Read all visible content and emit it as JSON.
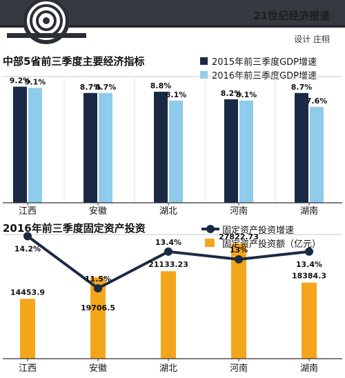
{
  "header": {
    "newspaper": "21世纪经济报道",
    "designer": "设计 庄栩"
  },
  "colors": {
    "navy": "#1b2a44",
    "light_blue": "#8fcbea",
    "orange": "#f3a51c",
    "topbar": "#353a40"
  },
  "chart_data": [
    {
      "type": "bar",
      "title": "中部5省前三季度主要经济指标",
      "categories": [
        "江西",
        "安徽",
        "湖北",
        "河南",
        "湖南"
      ],
      "series": [
        {
          "name": "2015年前三季度GDP增速",
          "values": [
            9.2,
            8.7,
            8.8,
            8.2,
            8.7
          ],
          "labels": [
            "9.2%",
            "8.7%",
            "8.8%",
            "8.2%",
            "8.7%"
          ]
        },
        {
          "name": "2016年前三季度GDP增速",
          "values": [
            9.1,
            8.7,
            8.1,
            8.1,
            7.6
          ],
          "labels": [
            "9.1%",
            "8.7%",
            "8.1%",
            "8.1%",
            "7.6%"
          ]
        }
      ],
      "ylim": [
        0,
        10
      ],
      "legend": "top-right"
    },
    {
      "type": "bar",
      "title": "2016年前三季度固定资产投资",
      "categories": [
        "江西",
        "安徽",
        "湖北",
        "河南",
        "湖南"
      ],
      "series": [
        {
          "name": "固定资产投资增速",
          "type": "line",
          "values": [
            14.2,
            11.5,
            13.4,
            13,
            13.4
          ],
          "labels": [
            "14.2%",
            "11.5%",
            "13.4%",
            "13%",
            "13.4%"
          ]
        },
        {
          "name": "固定资产投资额（亿元）",
          "type": "bar",
          "values": [
            14453.9,
            19706.5,
            21133.23,
            27822.73,
            18384.3
          ],
          "labels": [
            "14453.9",
            "19706.5",
            "21133.23",
            "27822.73",
            "18384.3"
          ]
        }
      ],
      "legend": "top-right"
    }
  ]
}
